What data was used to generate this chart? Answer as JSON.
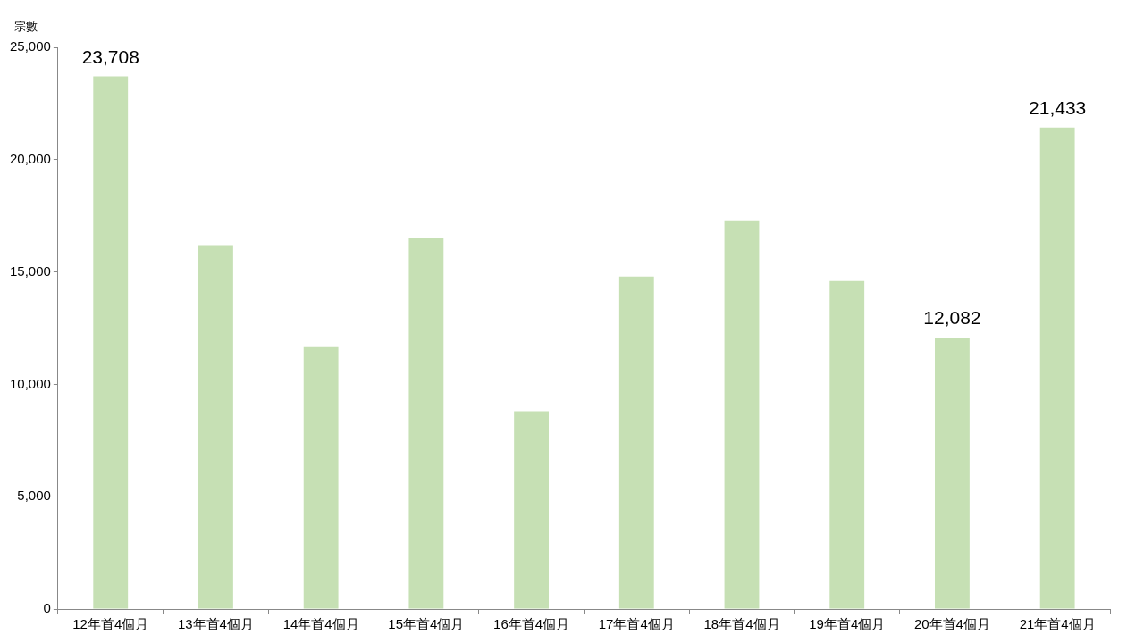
{
  "chart_data": {
    "type": "bar",
    "ylabel": "宗數",
    "categories": [
      "12年首4個月",
      "13年首4個月",
      "14年首4個月",
      "15年首4個月",
      "16年首4個月",
      "17年首4個月",
      "18年首4個月",
      "19年首4個月",
      "20年首4個月",
      "21年首4個月"
    ],
    "values": [
      23708,
      16200,
      11700,
      16500,
      8800,
      14800,
      17300,
      14600,
      12082,
      21433
    ],
    "value_labels": [
      "23,708",
      null,
      null,
      null,
      null,
      null,
      null,
      null,
      "12,082",
      "21,433"
    ],
    "color": "#c6e0b4",
    "ylim": [
      0,
      25000
    ],
    "yticks": [
      0,
      {
        "value": 5000,
        "label": "5,000"
      },
      {
        "value": 10000,
        "label": "10,000"
      },
      {
        "value": 15000,
        "label": "15,000"
      },
      {
        "value": 20000,
        "label": "20,000"
      },
      {
        "value": 25000,
        "label": "25,000"
      }
    ]
  }
}
